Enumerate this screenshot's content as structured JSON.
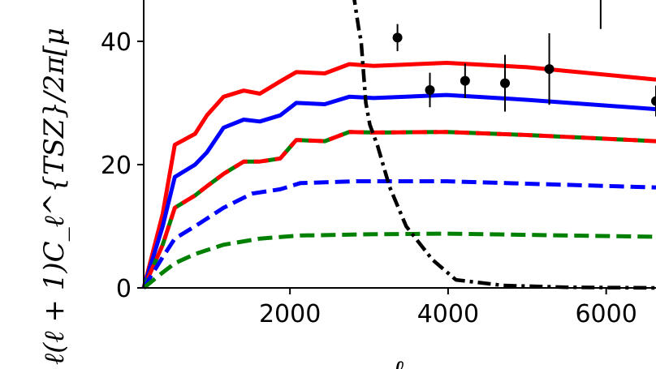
{
  "chart_data": {
    "type": "line",
    "title": "",
    "xlabel": "ℓ",
    "ylabel": "ℓ(ℓ + 1)C_ℓ^{TSZ}/2π[μ",
    "xlim": [
      150,
      6630
    ],
    "ylim": [
      0,
      46.7
    ],
    "x_ticks": [
      "2000",
      "4000",
      "6000"
    ],
    "x_tick_values": [
      2000,
      4000,
      6000
    ],
    "y_ticks": [
      "0",
      "20",
      "40"
    ],
    "y_tick_values": [
      0,
      20,
      40
    ],
    "grid": false,
    "series": [
      {
        "name": "red-solid",
        "color": "#ff0000",
        "style": "solid",
        "x": [
          150,
          390,
          543,
          800,
          950,
          1160,
          1415,
          1620,
          1877,
          2080,
          2440,
          2750,
          3060,
          3980,
          5000,
          6630
        ],
        "y": [
          0,
          12,
          23.2,
          25,
          28,
          31,
          32,
          31.5,
          33.5,
          35,
          34.8,
          36.3,
          36,
          36.5,
          35.8,
          33.8
        ]
      },
      {
        "name": "blue-solid",
        "color": "#0000ff",
        "style": "solid",
        "x": [
          150,
          390,
          543,
          800,
          950,
          1160,
          1415,
          1620,
          1877,
          2080,
          2440,
          2750,
          3060,
          3980,
          5000,
          6630
        ],
        "y": [
          0,
          10,
          18,
          20,
          22,
          26,
          27.3,
          27,
          28,
          30,
          29.8,
          31,
          30.8,
          31.3,
          30.5,
          29
        ]
      },
      {
        "name": "green-dashed-upper",
        "color": "#008000",
        "style": "dashed",
        "x": [
          150,
          390,
          543,
          800,
          950,
          1160,
          1415,
          1620,
          1877,
          2080,
          2440,
          2750,
          3060,
          3980,
          5000,
          6630
        ],
        "y": [
          0,
          7,
          13,
          15,
          16.5,
          18.5,
          20.5,
          20.5,
          21,
          24,
          23.8,
          25.3,
          25.2,
          25.3,
          24.8,
          23.8
        ]
      },
      {
        "name": "red-dashed",
        "color": "#ff0000",
        "style": "dashed-offset",
        "x": [
          150,
          390,
          543,
          800,
          950,
          1160,
          1415,
          1620,
          1877,
          2080,
          2440,
          2750,
          3060,
          3980,
          5000,
          6630
        ],
        "y": [
          0,
          7,
          13,
          15,
          16.5,
          18.5,
          20.5,
          20.5,
          21,
          24,
          23.8,
          25.3,
          25.2,
          25.3,
          24.8,
          23.8
        ]
      },
      {
        "name": "blue-dashed",
        "color": "#0000ff",
        "style": "dashed",
        "x": [
          150,
          390,
          543,
          800,
          1160,
          1520,
          1877,
          2130,
          2850,
          3980,
          5000,
          6630
        ],
        "y": [
          0,
          5,
          8,
          10,
          13,
          15.3,
          16,
          17,
          17.3,
          17.3,
          16.9,
          16.3
        ]
      },
      {
        "name": "green-dashed-lower",
        "color": "#008000",
        "style": "dashed",
        "x": [
          150,
          390,
          543,
          800,
          1160,
          1620,
          2130,
          3000,
          3980,
          5000,
          6630
        ],
        "y": [
          0,
          2.5,
          4,
          5.5,
          7,
          8,
          8.5,
          8.7,
          8.8,
          8.6,
          8.3
        ]
      },
      {
        "name": "black-dash-dot",
        "color": "#000000",
        "style": "dashdot",
        "x": [
          2800,
          2870,
          2900,
          2960,
          3010,
          3110,
          3260,
          3470,
          3800,
          4100,
          4700,
          5500,
          6630
        ],
        "y": [
          48,
          42,
          40,
          30,
          26.5,
          23,
          16.4,
          10,
          4.6,
          1.3,
          0.4,
          0.1,
          0
        ]
      }
    ],
    "points": {
      "name": "data",
      "color": "#000000",
      "x": [
        3360,
        3770,
        4215,
        4720,
        5280,
        6630
      ],
      "y": [
        40.6,
        32.1,
        33.6,
        33.2,
        35.5,
        30.3
      ],
      "yerr": [
        2.2,
        2.8,
        2.8,
        4.6,
        5.8,
        2.5
      ]
    },
    "offscreen_errorbar": {
      "x": 5930,
      "ylow": 42,
      "yhigh": 50
    }
  }
}
